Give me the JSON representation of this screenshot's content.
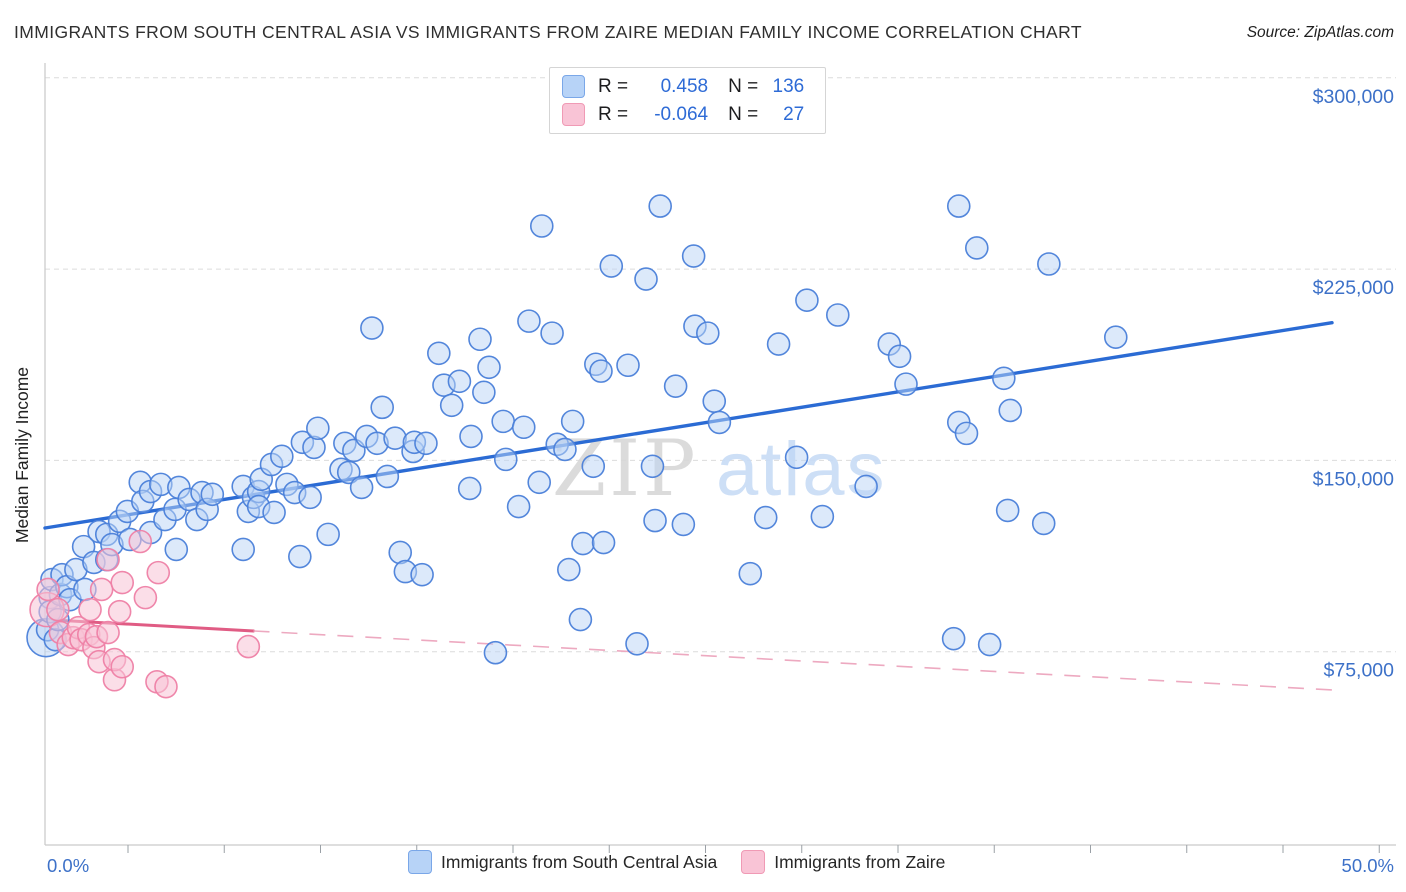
{
  "header": {
    "title": "IMMIGRANTS FROM SOUTH CENTRAL ASIA VS IMMIGRANTS FROM ZAIRE MEDIAN FAMILY INCOME CORRELATION CHART",
    "source": "Source: ZipAtlas.com"
  },
  "watermark": {
    "zip": "ZIP",
    "atlas": "atlas"
  },
  "stats_legend": {
    "rows": [
      {
        "series": "south-central-asia",
        "r_label": "R =",
        "r_value": "0.458",
        "n_label": "N =",
        "n_value": "136"
      },
      {
        "series": "zaire",
        "r_label": "R =",
        "r_value": "-0.064",
        "n_label": "N =",
        "n_value": "27"
      }
    ]
  },
  "bottom_legend": {
    "items": [
      {
        "label": "Immigrants from South Central Asia"
      },
      {
        "label": "Immigrants from Zaire"
      }
    ]
  },
  "axes": {
    "y_label": "Median Family Income",
    "y_ticks": [
      {
        "value": 300000,
        "label": "$300,000"
      },
      {
        "value": 225000,
        "label": "$225,000"
      },
      {
        "value": 150000,
        "label": "$150,000"
      },
      {
        "value": 75000,
        "label": "$75,000"
      }
    ],
    "x_min": 0,
    "x_max": 50,
    "x_min_label": "0.0%",
    "x_max_label": "50.0%"
  },
  "colors": {
    "blue_stroke": "#4a7fd9",
    "blue_fill": "#b9d4f6",
    "pink_stroke": "#ee7fa5",
    "pink_fill": "#f8c3d6",
    "blue_trend": "#2b6bd4",
    "pink_trend": "#e05c84",
    "pink_trend_dash": "#eda9c0",
    "grid": "#dcdcdc",
    "axis": "#c9c9c9",
    "tick": "#9aa0a6",
    "axis_label_blue": "#3d71c8",
    "text_dark": "#2f2f2f",
    "watermark_gray": "#d8d8d8",
    "watermark_blue": "#c8dcf6"
  },
  "chart_data": {
    "type": "scatter",
    "title": "Immigrants from South Central Asia vs Immigrants from Zaire Median Family Income",
    "xlabel_range": [
      "0.0%",
      "50.0%"
    ],
    "ylabel": "Median Family Income",
    "xlim": [
      0,
      52.5
    ],
    "ylim": [
      0,
      312000
    ],
    "grid": "horizontal-dashed",
    "legend_position": "bottom",
    "series": [
      {
        "name": "Immigrants from South Central Asia",
        "R": 0.458,
        "N": 136,
        "trend": {
          "x1": 0,
          "y1": 123500,
          "x2": 50,
          "y2": 204000,
          "style": "solid"
        },
        "points": [
          [
            0.04,
            80500,
            19
          ],
          [
            0.1,
            83600
          ],
          [
            0.2,
            96200
          ],
          [
            0.2,
            90700
          ],
          [
            0.27,
            103300
          ],
          [
            0.4,
            79700
          ],
          [
            0.5,
            87600
          ],
          [
            0.6,
            97400
          ],
          [
            0.66,
            105200
          ],
          [
            0.85,
            100500
          ],
          [
            0.97,
            95400
          ],
          [
            1.2,
            107200
          ],
          [
            1.5,
            116200
          ],
          [
            1.55,
            99400
          ],
          [
            1.9,
            110000
          ],
          [
            2.1,
            122100
          ],
          [
            2.4,
            121000
          ],
          [
            2.4,
            111100
          ],
          [
            2.6,
            117000
          ],
          [
            2.9,
            126100
          ],
          [
            3.2,
            130000
          ],
          [
            3.3,
            119000
          ],
          [
            3.7,
            141400
          ],
          [
            3.8,
            133900
          ],
          [
            4.1,
            137800
          ],
          [
            4.1,
            121700
          ],
          [
            4.5,
            140600
          ],
          [
            4.66,
            126800
          ],
          [
            5.05,
            130800
          ],
          [
            5.1,
            115100
          ],
          [
            5.2,
            139400
          ],
          [
            5.6,
            134700
          ],
          [
            5.9,
            126800
          ],
          [
            6.1,
            137400
          ],
          [
            6.3,
            130800
          ],
          [
            6.5,
            136700
          ],
          [
            7.7,
            139800
          ],
          [
            7.7,
            115100
          ],
          [
            7.9,
            130000
          ],
          [
            8.1,
            135500
          ],
          [
            8.3,
            137800
          ],
          [
            8.3,
            131900
          ],
          [
            8.4,
            142600
          ],
          [
            8.8,
            148400
          ],
          [
            8.9,
            129600
          ],
          [
            9.2,
            151600
          ],
          [
            9.4,
            140600
          ],
          [
            9.7,
            137400
          ],
          [
            9.9,
            112300
          ],
          [
            10.0,
            157100
          ],
          [
            10.3,
            135500
          ],
          [
            10.45,
            155100
          ],
          [
            10.6,
            162600
          ],
          [
            11.0,
            121000
          ],
          [
            11.5,
            146500
          ],
          [
            11.65,
            156700
          ],
          [
            11.8,
            145300
          ],
          [
            12.0,
            153900
          ],
          [
            12.3,
            139400
          ],
          [
            12.5,
            159400
          ],
          [
            12.7,
            201900
          ],
          [
            12.9,
            156700
          ],
          [
            13.1,
            170800
          ],
          [
            13.3,
            143700
          ],
          [
            13.6,
            158700
          ],
          [
            13.8,
            113900
          ],
          [
            14.0,
            106400
          ],
          [
            14.3,
            153500
          ],
          [
            14.35,
            157100
          ],
          [
            14.65,
            105200
          ],
          [
            14.8,
            156700
          ],
          [
            15.3,
            192000
          ],
          [
            15.5,
            179500
          ],
          [
            15.8,
            171600
          ],
          [
            16.1,
            181000
          ],
          [
            16.5,
            139000
          ],
          [
            16.55,
            159400
          ],
          [
            16.9,
            197500
          ],
          [
            17.05,
            176700
          ],
          [
            17.25,
            186500
          ],
          [
            17.5,
            74600
          ],
          [
            17.8,
            165300
          ],
          [
            17.9,
            150400
          ],
          [
            18.4,
            131900
          ],
          [
            18.6,
            163000
          ],
          [
            18.8,
            204600
          ],
          [
            19.2,
            141400
          ],
          [
            19.3,
            241900
          ],
          [
            19.7,
            199900
          ],
          [
            19.9,
            156300
          ],
          [
            20.2,
            154300
          ],
          [
            20.35,
            107200
          ],
          [
            20.5,
            165300
          ],
          [
            20.8,
            87600
          ],
          [
            20.9,
            117400
          ],
          [
            21.3,
            147700
          ],
          [
            21.4,
            187700
          ],
          [
            21.6,
            185000
          ],
          [
            21.7,
            117800
          ],
          [
            22.0,
            226200
          ],
          [
            22.65,
            187300
          ],
          [
            23.0,
            78100
          ],
          [
            23.35,
            221100
          ],
          [
            23.6,
            147700
          ],
          [
            23.7,
            126400
          ],
          [
            23.9,
            249700
          ],
          [
            24.5,
            179100
          ],
          [
            24.8,
            124900
          ],
          [
            25.2,
            230100
          ],
          [
            25.25,
            202600
          ],
          [
            25.75,
            199900
          ],
          [
            26.0,
            173200
          ],
          [
            26.2,
            164900
          ],
          [
            27.4,
            105600
          ],
          [
            28.0,
            127600
          ],
          [
            28.5,
            195600
          ],
          [
            29.2,
            151200
          ],
          [
            29.6,
            212800
          ],
          [
            30.2,
            128000
          ],
          [
            30.8,
            207000
          ],
          [
            31.9,
            139800
          ],
          [
            32.8,
            195600
          ],
          [
            33.2,
            190800
          ],
          [
            33.45,
            179900
          ],
          [
            35.3,
            80100
          ],
          [
            35.5,
            164900
          ],
          [
            35.5,
            249700
          ],
          [
            35.8,
            160600
          ],
          [
            36.2,
            233300
          ],
          [
            36.7,
            77800
          ],
          [
            37.25,
            182200
          ],
          [
            37.4,
            130400
          ],
          [
            37.5,
            169600
          ],
          [
            38.8,
            125300
          ],
          [
            39.0,
            227000
          ],
          [
            41.6,
            198300
          ]
        ]
      },
      {
        "name": "Immigrants from Zaire",
        "R": -0.064,
        "N": 27,
        "trend": {
          "x1": 0,
          "y1": 87600,
          "x2": 50,
          "y2": 60000,
          "style": "solid-then-dashed",
          "solid_until_x": 8.1
        },
        "points": [
          [
            0.08,
            91500,
            17
          ],
          [
            0.12,
            99400
          ],
          [
            0.5,
            91500
          ],
          [
            0.6,
            82500
          ],
          [
            0.9,
            77800
          ],
          [
            1.1,
            80500
          ],
          [
            1.3,
            84400
          ],
          [
            1.4,
            79700
          ],
          [
            1.7,
            81700
          ],
          [
            1.75,
            91500
          ],
          [
            1.9,
            76600
          ],
          [
            2.0,
            80900
          ],
          [
            2.1,
            71100
          ],
          [
            2.2,
            99400
          ],
          [
            2.45,
            82500
          ],
          [
            2.45,
            111100
          ],
          [
            2.7,
            64000
          ],
          [
            2.7,
            71900
          ],
          [
            2.9,
            90700
          ],
          [
            3.0,
            102100
          ],
          [
            3.0,
            69100
          ],
          [
            3.7,
            118200
          ],
          [
            3.9,
            96200
          ],
          [
            4.35,
            63200
          ],
          [
            4.4,
            106000
          ],
          [
            4.7,
            61300
          ],
          [
            7.9,
            77000
          ]
        ]
      }
    ]
  }
}
